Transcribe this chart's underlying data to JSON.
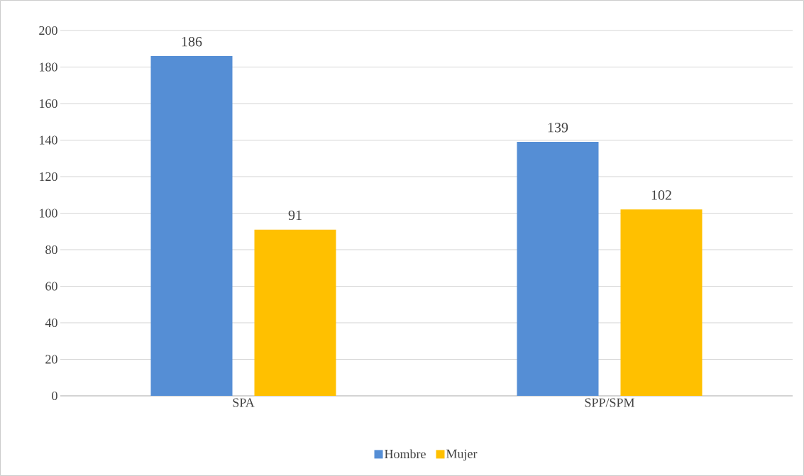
{
  "chart_data": {
    "type": "bar",
    "categories": [
      "SPA",
      "SPP/SPM"
    ],
    "series": [
      {
        "name": "Hombre",
        "color": "#558ed5",
        "values": [
          186,
          139
        ]
      },
      {
        "name": "Mujer",
        "color": "#ffc000",
        "values": [
          91,
          102
        ]
      }
    ],
    "ylim": [
      0,
      200
    ],
    "yticks": [
      0,
      20,
      40,
      60,
      80,
      100,
      120,
      140,
      160,
      180,
      200
    ],
    "grid": "y",
    "legend": "bottom",
    "data_labels": true
  }
}
